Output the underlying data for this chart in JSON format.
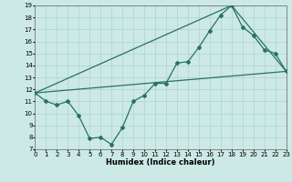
{
  "xlabel": "Humidex (Indice chaleur)",
  "bg_color": "#cce9e5",
  "grid_color": "#aad4cf",
  "line_color": "#2a7068",
  "xlim": [
    0,
    23
  ],
  "ylim": [
    7,
    19
  ],
  "yticks": [
    7,
    8,
    9,
    10,
    11,
    12,
    13,
    14,
    15,
    16,
    17,
    18,
    19
  ],
  "xticks": [
    0,
    1,
    2,
    3,
    4,
    5,
    6,
    7,
    8,
    9,
    10,
    11,
    12,
    13,
    14,
    15,
    16,
    17,
    18,
    19,
    20,
    21,
    22,
    23
  ],
  "line1_x": [
    0,
    1,
    2,
    3,
    4,
    5,
    6,
    7,
    8,
    9,
    10,
    11,
    12,
    13,
    14,
    15,
    16,
    17,
    18,
    19,
    20,
    21,
    22,
    23
  ],
  "line1_y": [
    11.7,
    11.0,
    10.7,
    11.0,
    9.8,
    7.9,
    8.0,
    7.4,
    8.8,
    11.0,
    11.5,
    12.5,
    12.5,
    14.2,
    14.3,
    15.5,
    16.9,
    18.2,
    19.0,
    17.2,
    16.5,
    15.3,
    15.0,
    13.5
  ],
  "line2_x": [
    0,
    18,
    23
  ],
  "line2_y": [
    11.7,
    19.0,
    13.5
  ],
  "line3_x": [
    0,
    23
  ],
  "line3_y": [
    11.7,
    13.5
  ],
  "marker": "D",
  "marker_size": 2.0,
  "line_width": 0.9,
  "tick_fontsize": 5.0,
  "xlabel_fontsize": 6.0
}
